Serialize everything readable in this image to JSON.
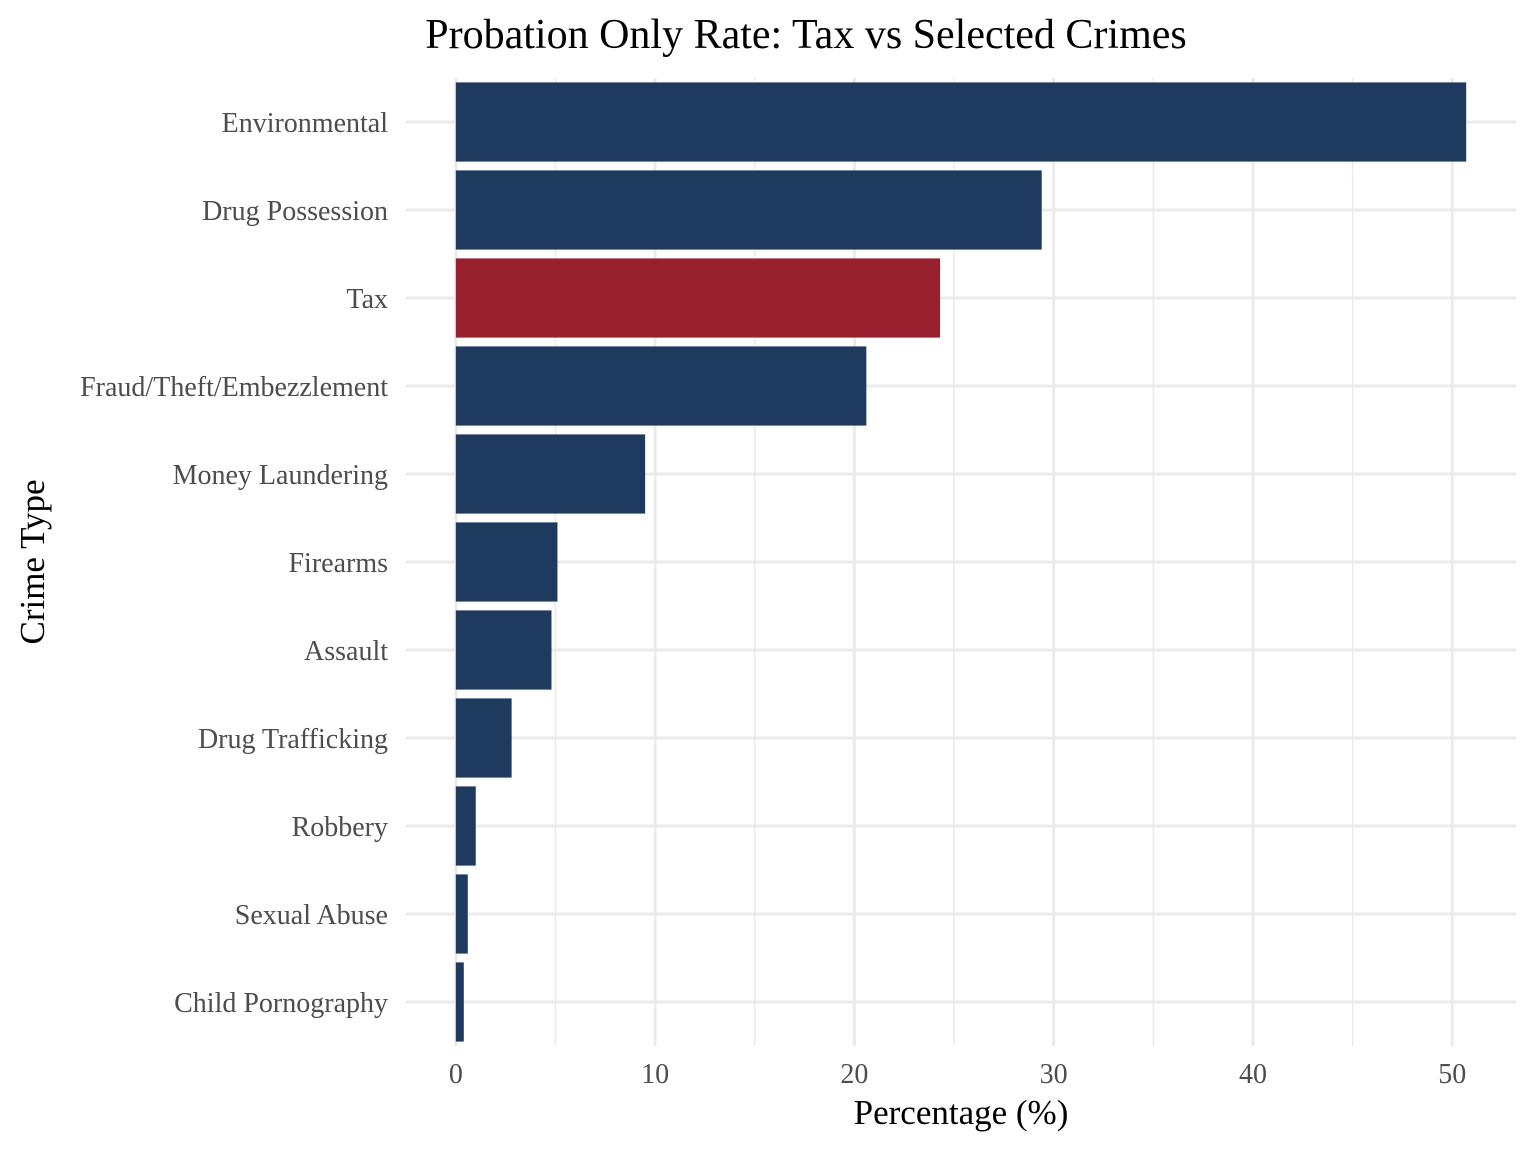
{
  "chart_data": {
    "type": "bar",
    "orientation": "horizontal",
    "title": "Probation Only Rate: Tax vs Selected Crimes",
    "xlabel": "Percentage (%)",
    "ylabel": "Crime Type",
    "categories": [
      "Environmental",
      "Drug Possession",
      "Tax",
      "Fraud/Theft/Embezzlement",
      "Money Laundering",
      "Firearms",
      "Assault",
      "Drug Trafficking",
      "Robbery",
      "Sexual Abuse",
      "Child Pornography"
    ],
    "values": [
      50.7,
      29.4,
      24.3,
      20.6,
      9.5,
      5.1,
      4.8,
      2.8,
      1.0,
      0.6,
      0.4
    ],
    "highlight": {
      "category": "Tax",
      "color": "#98202e"
    },
    "bar_color": "#1f3a5f",
    "xlim": [
      -2.5,
      53.2
    ],
    "x_ticks": [
      0,
      10,
      20,
      30,
      40,
      50
    ],
    "grid": true,
    "legend": "none"
  }
}
